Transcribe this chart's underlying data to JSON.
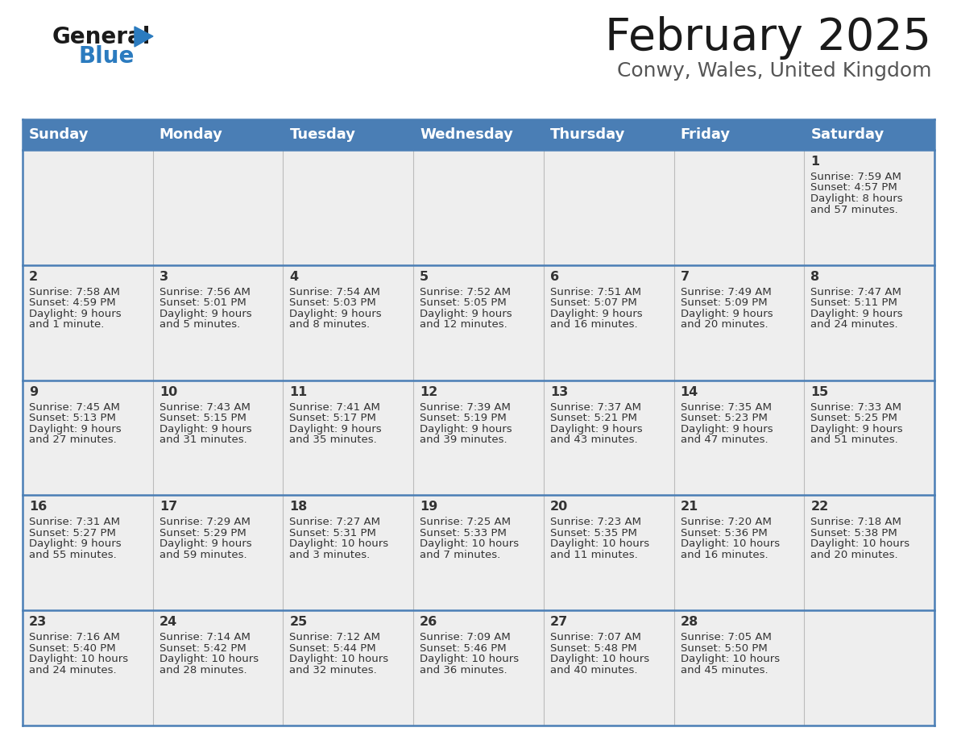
{
  "title": "February 2025",
  "subtitle": "Conwy, Wales, United Kingdom",
  "header_bg": "#4a7eb5",
  "header_text_color": "#ffffff",
  "border_color": "#4a7eb5",
  "cell_bg": "#eeeeee",
  "day_headers": [
    "Sunday",
    "Monday",
    "Tuesday",
    "Wednesday",
    "Thursday",
    "Friday",
    "Saturday"
  ],
  "calendar": [
    [
      null,
      null,
      null,
      null,
      null,
      null,
      {
        "day": "1",
        "sunrise": "7:59 AM",
        "sunset": "4:57 PM",
        "dl1": "Daylight: 8 hours",
        "dl2": "and 57 minutes."
      }
    ],
    [
      {
        "day": "2",
        "sunrise": "7:58 AM",
        "sunset": "4:59 PM",
        "dl1": "Daylight: 9 hours",
        "dl2": "and 1 minute."
      },
      {
        "day": "3",
        "sunrise": "7:56 AM",
        "sunset": "5:01 PM",
        "dl1": "Daylight: 9 hours",
        "dl2": "and 5 minutes."
      },
      {
        "day": "4",
        "sunrise": "7:54 AM",
        "sunset": "5:03 PM",
        "dl1": "Daylight: 9 hours",
        "dl2": "and 8 minutes."
      },
      {
        "day": "5",
        "sunrise": "7:52 AM",
        "sunset": "5:05 PM",
        "dl1": "Daylight: 9 hours",
        "dl2": "and 12 minutes."
      },
      {
        "day": "6",
        "sunrise": "7:51 AM",
        "sunset": "5:07 PM",
        "dl1": "Daylight: 9 hours",
        "dl2": "and 16 minutes."
      },
      {
        "day": "7",
        "sunrise": "7:49 AM",
        "sunset": "5:09 PM",
        "dl1": "Daylight: 9 hours",
        "dl2": "and 20 minutes."
      },
      {
        "day": "8",
        "sunrise": "7:47 AM",
        "sunset": "5:11 PM",
        "dl1": "Daylight: 9 hours",
        "dl2": "and 24 minutes."
      }
    ],
    [
      {
        "day": "9",
        "sunrise": "7:45 AM",
        "sunset": "5:13 PM",
        "dl1": "Daylight: 9 hours",
        "dl2": "and 27 minutes."
      },
      {
        "day": "10",
        "sunrise": "7:43 AM",
        "sunset": "5:15 PM",
        "dl1": "Daylight: 9 hours",
        "dl2": "and 31 minutes."
      },
      {
        "day": "11",
        "sunrise": "7:41 AM",
        "sunset": "5:17 PM",
        "dl1": "Daylight: 9 hours",
        "dl2": "and 35 minutes."
      },
      {
        "day": "12",
        "sunrise": "7:39 AM",
        "sunset": "5:19 PM",
        "dl1": "Daylight: 9 hours",
        "dl2": "and 39 minutes."
      },
      {
        "day": "13",
        "sunrise": "7:37 AM",
        "sunset": "5:21 PM",
        "dl1": "Daylight: 9 hours",
        "dl2": "and 43 minutes."
      },
      {
        "day": "14",
        "sunrise": "7:35 AM",
        "sunset": "5:23 PM",
        "dl1": "Daylight: 9 hours",
        "dl2": "and 47 minutes."
      },
      {
        "day": "15",
        "sunrise": "7:33 AM",
        "sunset": "5:25 PM",
        "dl1": "Daylight: 9 hours",
        "dl2": "and 51 minutes."
      }
    ],
    [
      {
        "day": "16",
        "sunrise": "7:31 AM",
        "sunset": "5:27 PM",
        "dl1": "Daylight: 9 hours",
        "dl2": "and 55 minutes."
      },
      {
        "day": "17",
        "sunrise": "7:29 AM",
        "sunset": "5:29 PM",
        "dl1": "Daylight: 9 hours",
        "dl2": "and 59 minutes."
      },
      {
        "day": "18",
        "sunrise": "7:27 AM",
        "sunset": "5:31 PM",
        "dl1": "Daylight: 10 hours",
        "dl2": "and 3 minutes."
      },
      {
        "day": "19",
        "sunrise": "7:25 AM",
        "sunset": "5:33 PM",
        "dl1": "Daylight: 10 hours",
        "dl2": "and 7 minutes."
      },
      {
        "day": "20",
        "sunrise": "7:23 AM",
        "sunset": "5:35 PM",
        "dl1": "Daylight: 10 hours",
        "dl2": "and 11 minutes."
      },
      {
        "day": "21",
        "sunrise": "7:20 AM",
        "sunset": "5:36 PM",
        "dl1": "Daylight: 10 hours",
        "dl2": "and 16 minutes."
      },
      {
        "day": "22",
        "sunrise": "7:18 AM",
        "sunset": "5:38 PM",
        "dl1": "Daylight: 10 hours",
        "dl2": "and 20 minutes."
      }
    ],
    [
      {
        "day": "23",
        "sunrise": "7:16 AM",
        "sunset": "5:40 PM",
        "dl1": "Daylight: 10 hours",
        "dl2": "and 24 minutes."
      },
      {
        "day": "24",
        "sunrise": "7:14 AM",
        "sunset": "5:42 PM",
        "dl1": "Daylight: 10 hours",
        "dl2": "and 28 minutes."
      },
      {
        "day": "25",
        "sunrise": "7:12 AM",
        "sunset": "5:44 PM",
        "dl1": "Daylight: 10 hours",
        "dl2": "and 32 minutes."
      },
      {
        "day": "26",
        "sunrise": "7:09 AM",
        "sunset": "5:46 PM",
        "dl1": "Daylight: 10 hours",
        "dl2": "and 36 minutes."
      },
      {
        "day": "27",
        "sunrise": "7:07 AM",
        "sunset": "5:48 PM",
        "dl1": "Daylight: 10 hours",
        "dl2": "and 40 minutes."
      },
      {
        "day": "28",
        "sunrise": "7:05 AM",
        "sunset": "5:50 PM",
        "dl1": "Daylight: 10 hours",
        "dl2": "and 45 minutes."
      },
      null
    ]
  ],
  "fig_w": 11.88,
  "fig_h": 9.18,
  "dpi": 100,
  "logo_color_general": "#1a1a1a",
  "logo_color_blue": "#2b7bbf",
  "title_color": "#1a1a1a",
  "subtitle_color": "#555555",
  "text_color": "#333333"
}
